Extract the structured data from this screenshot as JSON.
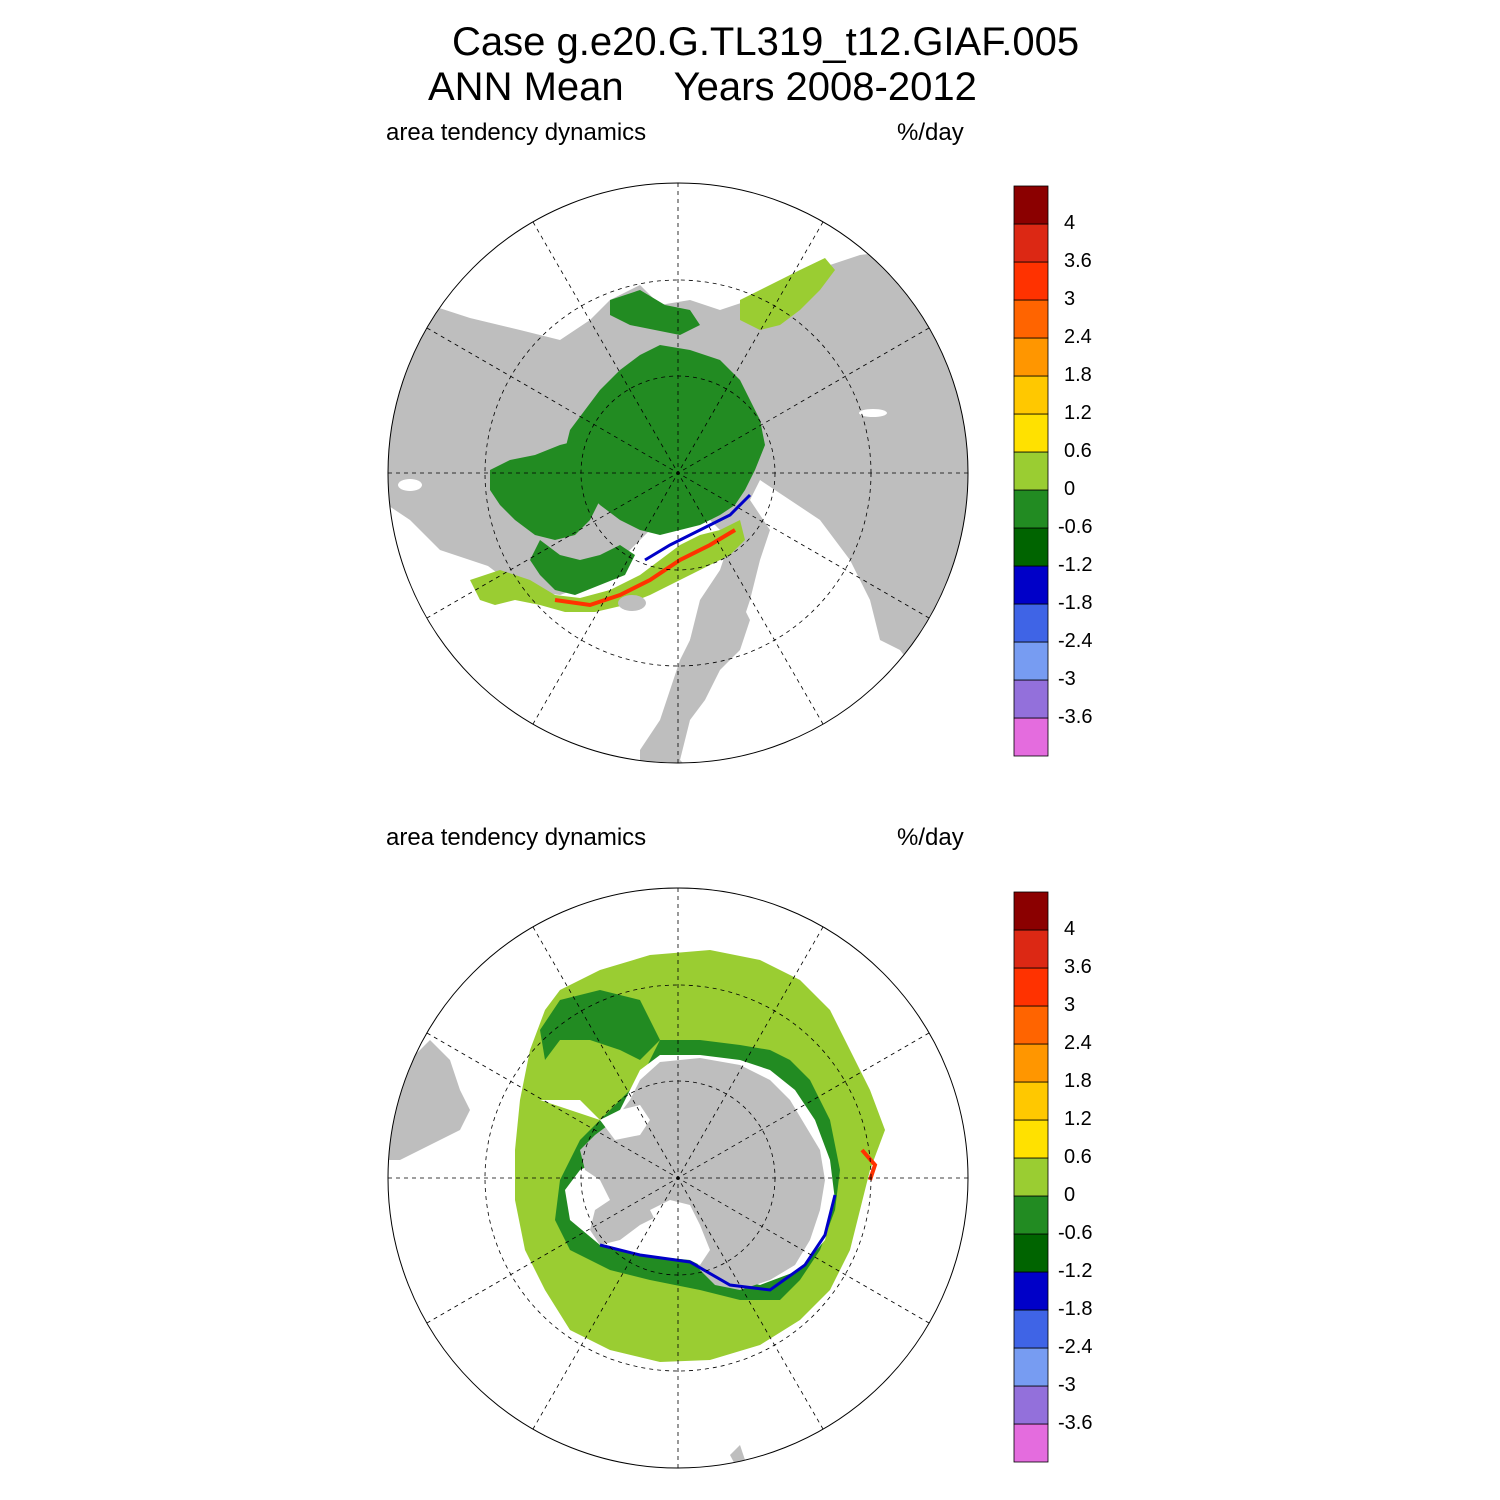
{
  "title": {
    "line1": "Case g.e20.G.TL319_t12.GIAF.005",
    "season": "ANN Mean",
    "years": "Years 2008-2012"
  },
  "panels": [
    {
      "left_label": "area tendency dynamics",
      "right_label": "%/day"
    },
    {
      "left_label": "area tendency dynamics",
      "right_label": "%/day"
    }
  ],
  "colorbar": {
    "colors": [
      "#E46CDE",
      "#9370DB",
      "#779CF2",
      "#3F64E6",
      "#0000C8",
      "#006400",
      "#228B22",
      "#9ACD32",
      "#FFE100",
      "#FFC800",
      "#FF9600",
      "#FF6400",
      "#FF3200",
      "#DC2814",
      "#8B0000"
    ],
    "labels": [
      "-3.6",
      "-3",
      "-2.4",
      "-1.8",
      "-1.2",
      "-0.6",
      "0",
      "0.6",
      "1.2",
      "1.8",
      "2.4",
      "3",
      "3.6",
      "4"
    ]
  },
  "map_colors": {
    "land": "#BEBEBE",
    "ocean": "#FFFFFF",
    "ice_main": "#228B22",
    "ice_light": "#9ACD32",
    "ice_yellow": "#FFE100",
    "edge_red": "#FF3200",
    "edge_blue": "#0000C8"
  }
}
